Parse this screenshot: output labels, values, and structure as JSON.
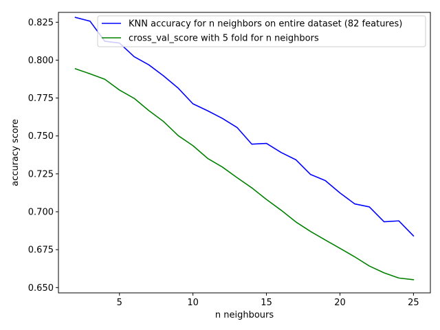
{
  "chart_data": {
    "type": "line",
    "xlabel": "n neighbours",
    "ylabel": "accuracy score",
    "xlim": [
      0.85,
      26.15
    ],
    "ylim": [
      0.6465,
      0.8315
    ],
    "xticks": [
      5,
      10,
      15,
      20,
      25
    ],
    "xtick_labels": [
      "5",
      "10",
      "15",
      "20",
      "25"
    ],
    "yticks": [
      0.65,
      0.675,
      0.7,
      0.725,
      0.75,
      0.775,
      0.8,
      0.825
    ],
    "ytick_labels": [
      "0.650",
      "0.675",
      "0.700",
      "0.725",
      "0.750",
      "0.775",
      "0.800",
      "0.825"
    ],
    "grid": false,
    "legend_position": "upper right",
    "x": [
      2,
      3,
      4,
      5,
      6,
      7,
      8,
      9,
      10,
      11,
      12,
      13,
      14,
      15,
      16,
      17,
      18,
      19,
      20,
      21,
      22,
      23,
      24,
      25
    ],
    "series": [
      {
        "name": "KNN accuracy for n neighbors on entire dataset (82 features)",
        "color": "#0000ff",
        "values": [
          0.8282,
          0.8257,
          0.8125,
          0.8113,
          0.8023,
          0.7969,
          0.7896,
          0.7815,
          0.7712,
          0.7666,
          0.7616,
          0.7556,
          0.7446,
          0.7451,
          0.7391,
          0.7343,
          0.7246,
          0.7206,
          0.7124,
          0.7052,
          0.7032,
          0.6934,
          0.694,
          0.6841
        ]
      },
      {
        "name": "cross_val_score with 5 fold for n neighbors",
        "color": "#008000",
        "values": [
          0.7943,
          0.791,
          0.7874,
          0.7803,
          0.7748,
          0.7667,
          0.7595,
          0.7502,
          0.7436,
          0.7352,
          0.7295,
          0.7225,
          0.7158,
          0.7081,
          0.701,
          0.6933,
          0.687,
          0.6814,
          0.6759,
          0.6703,
          0.6642,
          0.6597,
          0.6563,
          0.6552
        ]
      }
    ]
  }
}
